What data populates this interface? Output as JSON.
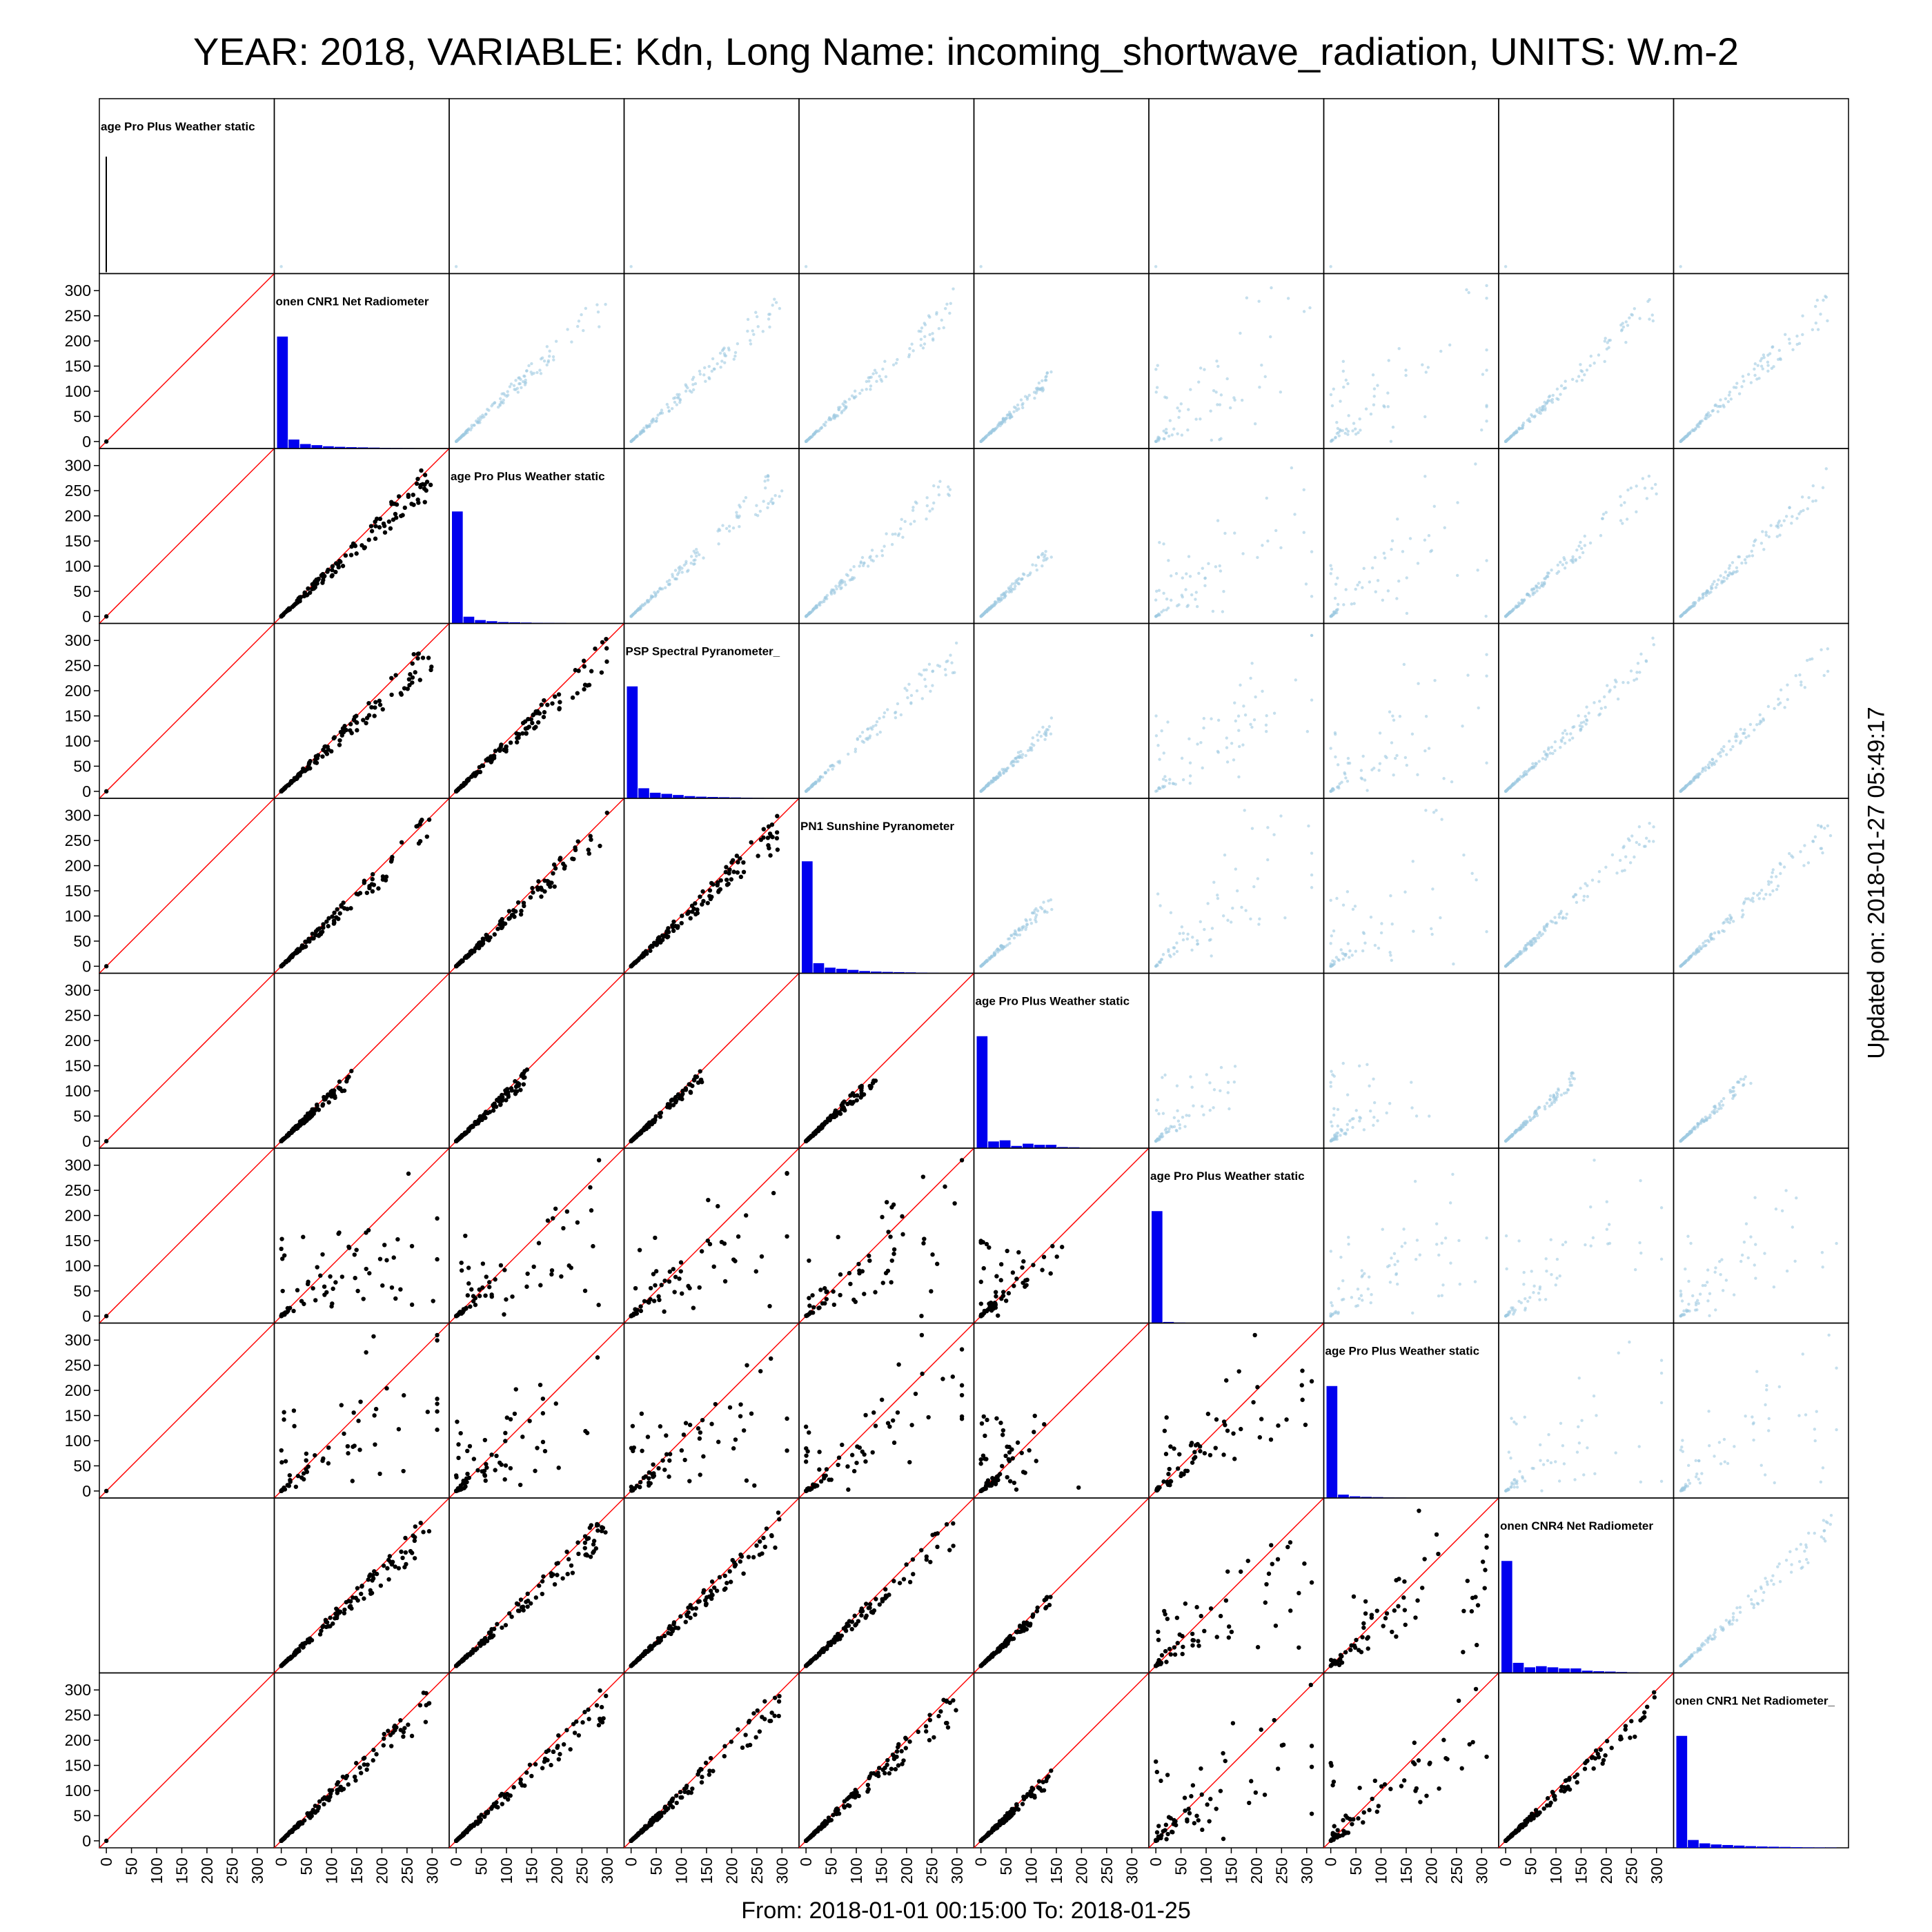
{
  "title": "YEAR: 2018, VARIABLE: Kdn, Long Name: incoming_shortwave_radiation, UNITS: W.m-2",
  "footer": "From: 2018-01-01 00:15:00 To: 2018-01-25",
  "updated": "Updated on: 2018-01-27 05:49:17",
  "colors": {
    "frame": "#000000",
    "one_to_one_line": "#ff0000",
    "lower_points": "#000000",
    "upper_points": "#9ecae1",
    "histogram": "#0000ee"
  },
  "chart_data": {
    "type": "scatter-matrix",
    "n": 10,
    "axis_range": [
      0,
      320
    ],
    "ticks": [
      0,
      50,
      100,
      150,
      200,
      250,
      300
    ],
    "x_tick_labels": [
      "0",
      "50",
      "100",
      "150",
      "200",
      "250",
      "300"
    ],
    "y_tick_labels": [
      "0",
      "50",
      "100",
      "150",
      "200",
      "250",
      "300"
    ],
    "one_to_one_line": true,
    "diagonal_labels": [
      "age Pro Plus Weather static",
      "onen CNR1 Net Radiometer",
      "age Pro Plus Weather static",
      "PSP Spectral Pyranometer_",
      "PN1 Sunshine Pyranometer",
      "age Pro Plus Weather static",
      "age Pro Plus Weather static",
      "age Pro Plus Weather static",
      "onen CNR4 Net Radiometer",
      "onen CNR1 Net Radiometer_"
    ],
    "hist_bins_relative": [
      [
        1.0,
        0,
        0,
        0,
        0,
        0,
        0,
        0,
        0,
        0,
        0,
        0,
        0,
        0
      ],
      [
        1.0,
        0.08,
        0.04,
        0.03,
        0.02,
        0.015,
        0.012,
        0.01,
        0.008,
        0.006,
        0.005,
        0.004,
        0.003,
        0.002
      ],
      [
        1.0,
        0.06,
        0.03,
        0.02,
        0.012,
        0.01,
        0.008,
        0.006,
        0.005,
        0.004,
        0.003,
        0.002,
        0.002,
        0.001
      ],
      [
        1.0,
        0.09,
        0.05,
        0.04,
        0.03,
        0.02,
        0.015,
        0.012,
        0.01,
        0.008,
        0.006,
        0.004,
        0.003,
        0.002
      ],
      [
        1.0,
        0.09,
        0.05,
        0.04,
        0.03,
        0.02,
        0.015,
        0.012,
        0.01,
        0.008,
        0.006,
        0.004,
        0.003,
        0.002
      ],
      [
        1.0,
        0.06,
        0.07,
        0.02,
        0.04,
        0.03,
        0.03,
        0.01,
        0.008,
        0.004,
        0.002,
        0.001,
        0,
        0
      ],
      [
        1.0,
        0.01,
        0.005,
        0.003,
        0.002,
        0.002,
        0.001,
        0.001,
        0.001,
        0,
        0,
        0,
        0,
        0
      ],
      [
        1.0,
        0.03,
        0.015,
        0.01,
        0.008,
        0.005,
        0.004,
        0.003,
        0.002,
        0.001,
        0.001,
        0,
        0,
        0
      ],
      [
        1.0,
        0.09,
        0.05,
        0.06,
        0.05,
        0.04,
        0.04,
        0.02,
        0.015,
        0.012,
        0.008,
        0.005,
        0.003,
        0.002
      ],
      [
        1.0,
        0.07,
        0.04,
        0.03,
        0.025,
        0.02,
        0.015,
        0.012,
        0.01,
        0.008,
        0.006,
        0.004,
        0.003,
        0.002
      ]
    ]
  }
}
